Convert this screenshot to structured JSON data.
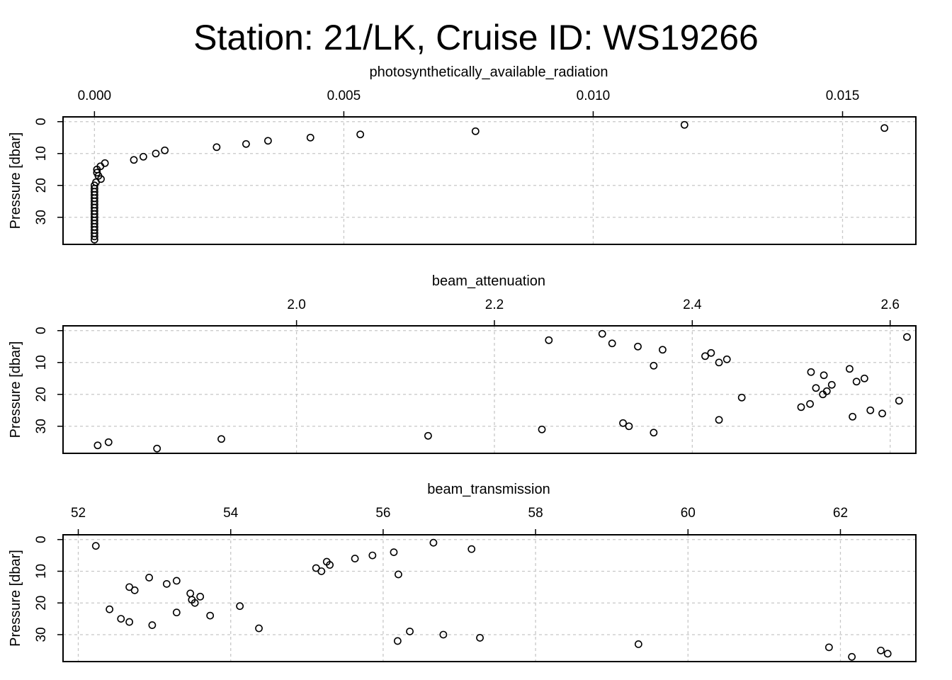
{
  "title": "Station: 21/LK, Cruise ID: WS19266",
  "chart_data": [
    {
      "type": "scatter",
      "xlabel": "photosynthetically_available_radiation",
      "ylabel": "Pressure [dbar]",
      "x_axis_position": "top",
      "y_reversed": true,
      "xlim": [
        -0.00063,
        0.01647
      ],
      "ylim": [
        38.5,
        -1.5
      ],
      "xticks": [
        0.0,
        0.005,
        0.01,
        0.015
      ],
      "xtick_labels": [
        "0.000",
        "0.005",
        "0.010",
        "0.015"
      ],
      "yticks": [
        0,
        10,
        20,
        30
      ],
      "ytick_labels": [
        "0",
        "10",
        "20",
        "30"
      ],
      "grid": true,
      "points": [
        [
          0.01183,
          1
        ],
        [
          0.01584,
          2
        ],
        [
          0.00764,
          3
        ],
        [
          0.00533,
          4
        ],
        [
          0.00433,
          5
        ],
        [
          0.00348,
          6
        ],
        [
          0.00304,
          7
        ],
        [
          0.00245,
          8
        ],
        [
          0.00141,
          9
        ],
        [
          0.00123,
          10
        ],
        [
          0.00098,
          11
        ],
        [
          0.00079,
          12
        ],
        [
          0.00021,
          13
        ],
        [
          0.00012,
          14
        ],
        [
          5e-05,
          15
        ],
        [
          5e-05,
          16
        ],
        [
          8e-05,
          17
        ],
        [
          0.00013,
          18
        ],
        [
          3e-05,
          19
        ],
        [
          0.0,
          20
        ],
        [
          0.0,
          21
        ],
        [
          0.0,
          22
        ],
        [
          0.0,
          23
        ],
        [
          0.0,
          24
        ],
        [
          0.0,
          25
        ],
        [
          0.0,
          26
        ],
        [
          0.0,
          27
        ],
        [
          0.0,
          28
        ],
        [
          0.0,
          29
        ],
        [
          0.0,
          30
        ],
        [
          0.0,
          31
        ],
        [
          0.0,
          32
        ],
        [
          0.0,
          33
        ],
        [
          0.0,
          34
        ],
        [
          0.0,
          35
        ],
        [
          0.0,
          36
        ],
        [
          0.0,
          37
        ]
      ]
    },
    {
      "type": "scatter",
      "xlabel": "beam_attenuation",
      "ylabel": "Pressure [dbar]",
      "x_axis_position": "top",
      "y_reversed": true,
      "xlim": [
        1.764,
        2.626
      ],
      "ylim": [
        38.5,
        -1.5
      ],
      "xticks": [
        2.0,
        2.2,
        2.4,
        2.6
      ],
      "xtick_labels": [
        "2.0",
        "2.2",
        "2.4",
        "2.6"
      ],
      "yticks": [
        0,
        10,
        20,
        30
      ],
      "ytick_labels": [
        "0",
        "10",
        "20",
        "30"
      ],
      "grid": true,
      "points": [
        [
          2.309,
          1
        ],
        [
          2.617,
          2
        ],
        [
          2.255,
          3
        ],
        [
          2.319,
          4
        ],
        [
          2.345,
          5
        ],
        [
          2.37,
          6
        ],
        [
          2.419,
          7
        ],
        [
          2.413,
          8
        ],
        [
          2.435,
          9
        ],
        [
          2.427,
          10
        ],
        [
          2.361,
          11
        ],
        [
          2.559,
          12
        ],
        [
          2.52,
          13
        ],
        [
          2.533,
          14
        ],
        [
          2.574,
          15
        ],
        [
          2.566,
          16
        ],
        [
          2.541,
          17
        ],
        [
          2.525,
          18
        ],
        [
          2.536,
          19
        ],
        [
          2.532,
          20
        ],
        [
          2.45,
          21
        ],
        [
          2.609,
          22
        ],
        [
          2.519,
          23
        ],
        [
          2.51,
          24
        ],
        [
          2.58,
          25
        ],
        [
          2.592,
          26
        ],
        [
          2.562,
          27
        ],
        [
          2.427,
          28
        ],
        [
          2.33,
          29
        ],
        [
          2.336,
          30
        ],
        [
          2.248,
          31
        ],
        [
          2.361,
          32
        ],
        [
          2.133,
          33
        ],
        [
          1.924,
          34
        ],
        [
          1.81,
          35
        ],
        [
          1.799,
          36
        ],
        [
          1.859,
          37
        ]
      ]
    },
    {
      "type": "scatter",
      "xlabel": "beam_transmission",
      "ylabel": "Pressure [dbar]",
      "x_axis_position": "top",
      "y_reversed": true,
      "xlim": [
        51.8,
        62.99
      ],
      "ylim": [
        38.5,
        -1.5
      ],
      "xticks": [
        52,
        54,
        56,
        58,
        60,
        62
      ],
      "xtick_labels": [
        "52",
        "54",
        "56",
        "58",
        "60",
        "62"
      ],
      "yticks": [
        0,
        10,
        20,
        30
      ],
      "ytick_labels": [
        "0",
        "10",
        "20",
        "30"
      ],
      "grid": true,
      "points": [
        [
          56.66,
          1
        ],
        [
          52.23,
          2
        ],
        [
          57.16,
          3
        ],
        [
          56.14,
          4
        ],
        [
          55.86,
          5
        ],
        [
          55.63,
          6
        ],
        [
          55.26,
          7
        ],
        [
          55.3,
          8
        ],
        [
          55.12,
          9
        ],
        [
          55.19,
          10
        ],
        [
          56.2,
          11
        ],
        [
          52.93,
          12
        ],
        [
          53.29,
          13
        ],
        [
          53.16,
          14
        ],
        [
          52.67,
          15
        ],
        [
          52.74,
          16
        ],
        [
          53.47,
          17
        ],
        [
          53.6,
          18
        ],
        [
          53.49,
          19
        ],
        [
          53.53,
          20
        ],
        [
          54.12,
          21
        ],
        [
          52.41,
          22
        ],
        [
          53.29,
          23
        ],
        [
          53.73,
          24
        ],
        [
          52.56,
          25
        ],
        [
          52.67,
          26
        ],
        [
          52.97,
          27
        ],
        [
          54.37,
          28
        ],
        [
          56.35,
          29
        ],
        [
          56.79,
          30
        ],
        [
          57.27,
          31
        ],
        [
          56.19,
          32
        ],
        [
          59.35,
          33
        ],
        [
          61.85,
          34
        ],
        [
          62.53,
          35
        ],
        [
          62.62,
          36
        ],
        [
          62.15,
          37
        ]
      ]
    }
  ]
}
